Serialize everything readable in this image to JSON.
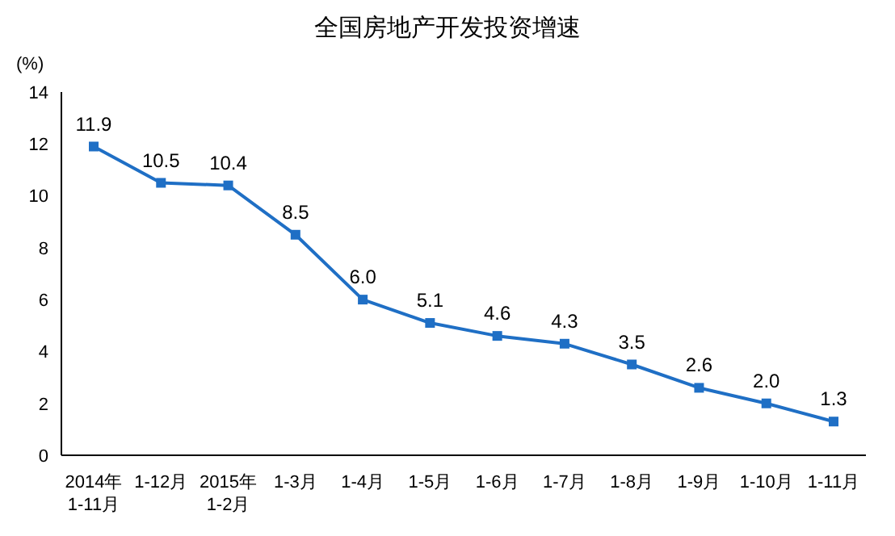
{
  "chart_data": {
    "type": "line",
    "title": "全国房地产开发投资增速",
    "ylabel": "(%)",
    "categories": [
      "2014年\n1-11月",
      "1-12月",
      "2015年\n1-2月",
      "1-3月",
      "1-4月",
      "1-5月",
      "1-6月",
      "1-7月",
      "1-8月",
      "1-9月",
      "1-10月",
      "1-11月"
    ],
    "series": [
      {
        "color": "#1f6fc5",
        "values": [
          11.9,
          10.5,
          10.4,
          8.5,
          6.0,
          5.1,
          4.6,
          4.3,
          3.5,
          2.6,
          2.0,
          1.3
        ],
        "value_labels": [
          "11.9",
          "10.5",
          "10.4",
          "8.5",
          "6.0",
          "5.1",
          "4.6",
          "4.3",
          "3.5",
          "2.6",
          "2.0",
          "1.3"
        ]
      }
    ],
    "ylim": [
      0,
      14
    ],
    "yticks": [
      0,
      2,
      4,
      6,
      8,
      10,
      12,
      14
    ],
    "grid": false,
    "marker": "square",
    "line_style": "solid"
  }
}
